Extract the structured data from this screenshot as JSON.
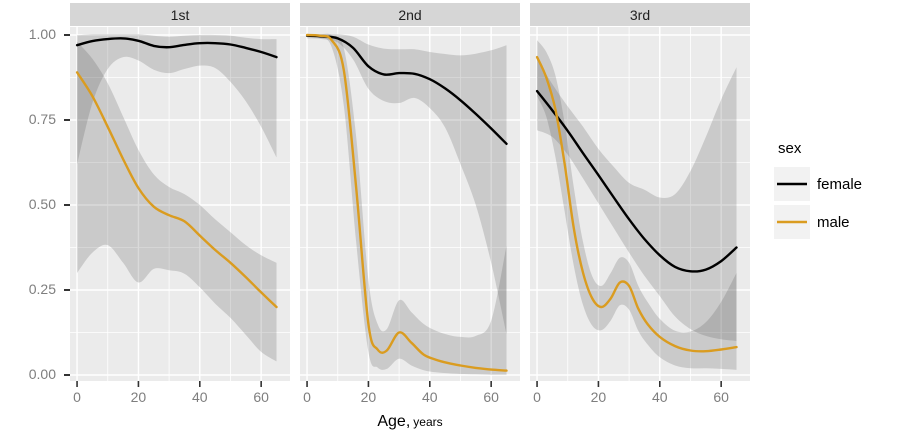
{
  "chart_data": {
    "type": "line",
    "title": "",
    "xlabel_main": "Age,",
    "xlabel_unit": "years",
    "ylabel": "",
    "grid": true,
    "xlim": [
      -2.3,
      69.4
    ],
    "ylim": [
      -0.018,
      1.024
    ],
    "x_ticks": [
      0,
      20,
      40,
      60
    ],
    "x_tick_labels": [
      "0",
      "20",
      "40",
      "60"
    ],
    "x_minor": [
      10,
      30,
      50
    ],
    "y_ticks": [
      0,
      0.25,
      0.5,
      0.75,
      1
    ],
    "y_tick_labels": [
      "0.00",
      "0.25",
      "0.50",
      "0.75",
      "1.00"
    ],
    "y_minor": [
      0.125,
      0.375,
      0.625,
      0.875
    ],
    "legend": {
      "title": "sex",
      "position": "right",
      "items": [
        {
          "label": "female",
          "color": "#000000"
        },
        {
          "label": "male",
          "color": "#DA9C20"
        }
      ]
    },
    "style": {
      "panel_bg": "#ebebeb",
      "grid_color": "#ffffff",
      "strip_bg": "#d6d6d6",
      "strip_text": "#1f1f1f",
      "axis_text": "#7e7e7e",
      "tick_mark": "#333333",
      "band_color": "#555555",
      "band_opacity": 0.22,
      "key_bg": "#f2f2f2"
    },
    "facets": [
      {
        "label": "1st",
        "series": [
          {
            "name": "female",
            "color": "#000000",
            "x": [
              0,
              5,
              10,
              15,
              20,
              25,
              30,
              35,
              40,
              45,
              50,
              55,
              60,
              65
            ],
            "y": [
              0.97,
              0.982,
              0.988,
              0.99,
              0.983,
              0.968,
              0.964,
              0.971,
              0.976,
              0.976,
              0.972,
              0.962,
              0.95,
              0.935
            ],
            "hi": [
              0.999,
              1.002,
              1.002,
              1.002,
              1.002,
              0.998,
              0.995,
              0.998,
              1.0,
              1.0,
              0.998,
              0.992,
              0.988,
              0.988
            ],
            "lo": [
              0.62,
              0.8,
              0.9,
              0.935,
              0.925,
              0.898,
              0.888,
              0.9,
              0.91,
              0.903,
              0.862,
              0.805,
              0.73,
              0.64
            ]
          },
          {
            "name": "male",
            "color": "#DA9C20",
            "x": [
              0,
              5,
              10,
              15,
              20,
              25,
              30,
              35,
              40,
              45,
              50,
              55,
              60,
              65
            ],
            "y": [
              0.89,
              0.82,
              0.73,
              0.635,
              0.55,
              0.495,
              0.47,
              0.452,
              0.41,
              0.368,
              0.33,
              0.288,
              0.243,
              0.2
            ],
            "hi": [
              0.98,
              0.93,
              0.858,
              0.76,
              0.662,
              0.59,
              0.553,
              0.532,
              0.5,
              0.458,
              0.42,
              0.382,
              0.352,
              0.33
            ],
            "lo": [
              0.3,
              0.36,
              0.382,
              0.33,
              0.272,
              0.312,
              0.308,
              0.298,
              0.258,
              0.21,
              0.168,
              0.118,
              0.068,
              0.04
            ]
          }
        ]
      },
      {
        "label": "2nd",
        "series": [
          {
            "name": "female",
            "color": "#000000",
            "x": [
              0,
              5,
              10,
              15,
              20,
              25,
              30,
              35,
              40,
              45,
              50,
              55,
              60,
              65
            ],
            "y": [
              0.998,
              0.996,
              0.99,
              0.962,
              0.908,
              0.884,
              0.888,
              0.886,
              0.87,
              0.843,
              0.808,
              0.768,
              0.725,
              0.68
            ],
            "hi": [
              1.002,
              1.002,
              1.002,
              0.995,
              0.972,
              0.96,
              0.958,
              0.958,
              0.95,
              0.944,
              0.94,
              0.945,
              0.955,
              0.97
            ],
            "lo": [
              0.99,
              0.988,
              0.978,
              0.928,
              0.842,
              0.806,
              0.8,
              0.815,
              0.785,
              0.728,
              0.62,
              0.5,
              0.33,
              0.12
            ]
          },
          {
            "name": "male",
            "color": "#DA9C20",
            "x": [
              0,
              4,
              8,
              12,
              16,
              20,
              23,
              26,
              30,
              34,
              38,
              42,
              46,
              50,
              55,
              60,
              65
            ],
            "y": [
              1.0,
              0.998,
              0.985,
              0.895,
              0.55,
              0.15,
              0.075,
              0.072,
              0.125,
              0.095,
              0.06,
              0.045,
              0.035,
              0.028,
              0.021,
              0.016,
              0.013
            ],
            "hi": [
              1.002,
              1.002,
              1.0,
              0.96,
              0.7,
              0.28,
              0.15,
              0.135,
              0.22,
              0.185,
              0.15,
              0.13,
              0.118,
              0.112,
              0.115,
              0.16,
              0.38
            ],
            "lo": [
              0.996,
              0.992,
              0.965,
              0.79,
              0.39,
              0.068,
              0.022,
              0.018,
              0.048,
              0.028,
              0.014,
              0.008,
              0.005,
              0.003,
              0.002,
              0.001,
              0.001
            ]
          }
        ]
      },
      {
        "label": "3rd",
        "series": [
          {
            "name": "female",
            "color": "#000000",
            "x": [
              0,
              5,
              10,
              15,
              20,
              25,
              30,
              35,
              40,
              45,
              50,
              55,
              60,
              65
            ],
            "y": [
              0.835,
              0.778,
              0.718,
              0.652,
              0.588,
              0.522,
              0.458,
              0.4,
              0.352,
              0.318,
              0.305,
              0.31,
              0.335,
              0.375
            ],
            "hi": [
              0.93,
              0.855,
              0.79,
              0.73,
              0.665,
              0.612,
              0.565,
              0.545,
              0.522,
              0.532,
              0.6,
              0.7,
              0.81,
              0.905
            ],
            "lo": [
              0.72,
              0.7,
              0.648,
              0.578,
              0.505,
              0.432,
              0.36,
              0.292,
              0.232,
              0.172,
              0.135,
              0.115,
              0.105,
              0.1
            ]
          },
          {
            "name": "male",
            "color": "#DA9C20",
            "x": [
              0,
              3,
              6,
              9,
              12,
              15,
              18,
              21,
              24,
              27,
              30,
              33,
              36,
              40,
              45,
              50,
              55,
              60,
              65
            ],
            "y": [
              0.935,
              0.875,
              0.78,
              0.62,
              0.43,
              0.3,
              0.225,
              0.2,
              0.225,
              0.272,
              0.262,
              0.195,
              0.15,
              0.112,
              0.085,
              0.072,
              0.07,
              0.075,
              0.082
            ],
            "hi": [
              0.985,
              0.95,
              0.88,
              0.74,
              0.55,
              0.39,
              0.29,
              0.262,
              0.3,
              0.345,
              0.33,
              0.262,
              0.215,
              0.165,
              0.13,
              0.128,
              0.155,
              0.215,
              0.3
            ],
            "lo": [
              0.82,
              0.76,
              0.64,
              0.48,
              0.32,
              0.205,
              0.145,
              0.132,
              0.16,
              0.205,
              0.192,
              0.13,
              0.09,
              0.052,
              0.028,
              0.02,
              0.02,
              0.018,
              0.015
            ]
          }
        ]
      }
    ]
  }
}
